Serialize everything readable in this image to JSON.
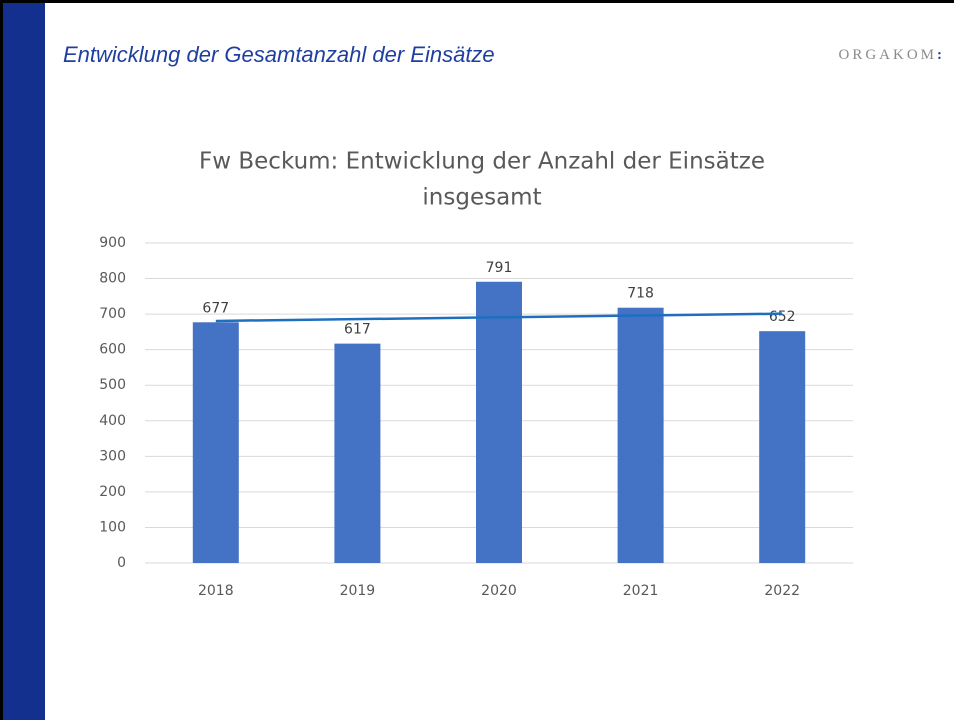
{
  "slide_title": "Entwicklung der Gesamtanzahl der Einsätze",
  "logo": {
    "name": "ORGAKOM",
    "mark": ":"
  },
  "chart_data": {
    "type": "bar",
    "title": [
      "Fw Beckum: Entwicklung der Anzahl der Einsätze",
      "insgesamt"
    ],
    "categories": [
      "2018",
      "2019",
      "2020",
      "2021",
      "2022"
    ],
    "values": [
      677,
      617,
      791,
      718,
      652
    ],
    "color": "#4472c4",
    "ylim": [
      0,
      900
    ],
    "yticks": [
      0,
      100,
      200,
      300,
      400,
      500,
      600,
      700,
      800,
      900
    ],
    "grid": true,
    "trendline": {
      "type": "linear",
      "color": "#1f6fbf"
    }
  }
}
